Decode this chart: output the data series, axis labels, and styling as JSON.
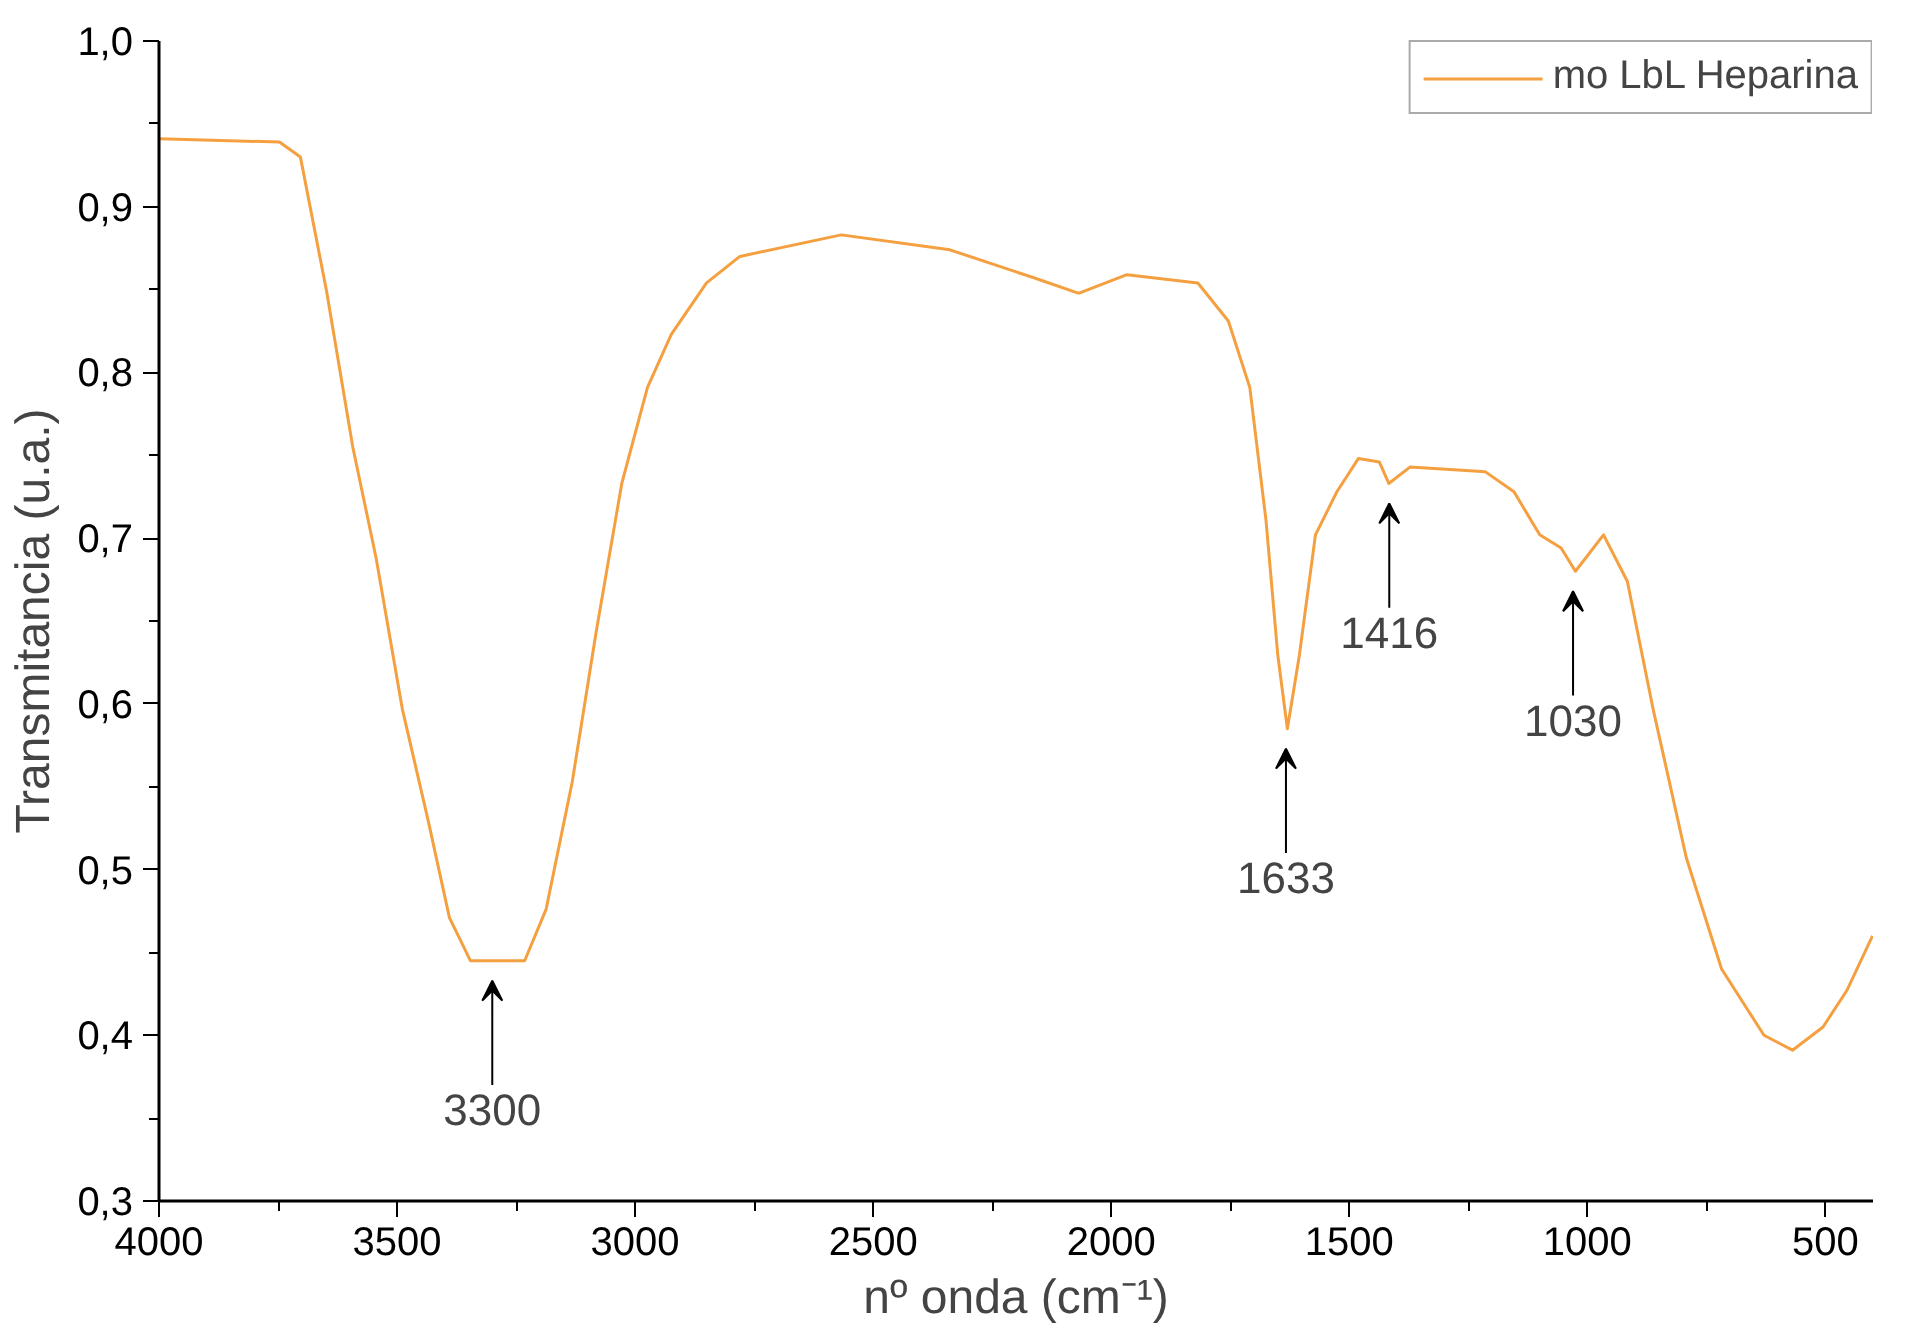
{
  "chart_data": {
    "type": "line",
    "xlabel": "nº onda (cm⁻¹)",
    "ylabel": "Transmitancia (u.a.)",
    "x": [
      4000,
      3871,
      3747,
      3703,
      3648,
      3593,
      3544,
      3489,
      3435,
      3390,
      3346,
      3232,
      3187,
      3132,
      3082,
      3028,
      2974,
      2924,
      2850,
      2780,
      2567,
      2339,
      2161,
      2071,
      2066,
      1967,
      1818,
      1754,
      1709,
      1675,
      1650,
      1630,
      1605,
      1571,
      1526,
      1481,
      1437,
      1417,
      1372,
      1214,
      1154,
      1100,
      1055,
      1025,
      966,
      916,
      862,
      792,
      718,
      629,
      569,
      505,
      455,
      401
    ],
    "series": [
      {
        "name": "mo LbL Heparina",
        "color": "#f5a040",
        "values": [
          0.941,
          0.94,
          0.939,
          0.93,
          0.849,
          0.755,
          0.688,
          0.597,
          0.53,
          0.471,
          0.445,
          0.445,
          0.476,
          0.553,
          0.643,
          0.733,
          0.791,
          0.823,
          0.854,
          0.87,
          0.883,
          0.874,
          0.857,
          0.848,
          0.848,
          0.859,
          0.854,
          0.831,
          0.791,
          0.711,
          0.629,
          0.585,
          0.629,
          0.702,
          0.728,
          0.748,
          0.746,
          0.733,
          0.743,
          0.74,
          0.728,
          0.702,
          0.694,
          0.68,
          0.702,
          0.674,
          0.597,
          0.507,
          0.44,
          0.4,
          0.391,
          0.405,
          0.427,
          0.46
        ]
      }
    ],
    "xlim": [
      4000,
      400
    ],
    "xticks": [
      4000,
      3500,
      3000,
      2500,
      2000,
      1500,
      1000,
      500
    ],
    "ylim": [
      0.3,
      1.0
    ],
    "yticks": [
      {
        "value": 0.3,
        "label": "0,3"
      },
      {
        "value": 0.4,
        "label": "0,4"
      },
      {
        "value": 0.5,
        "label": "0,5"
      },
      {
        "value": 0.6,
        "label": "0,6"
      },
      {
        "value": 0.7,
        "label": "0,7"
      },
      {
        "value": 0.8,
        "label": "0,8"
      },
      {
        "value": 0.9,
        "label": "0,9"
      },
      {
        "value": 1.0,
        "label": "1,0"
      }
    ],
    "annotations": [
      {
        "text": "3300",
        "x": 3300,
        "y": 0.445
      },
      {
        "text": "1633",
        "x": 1633,
        "y": 0.585
      },
      {
        "text": "1416",
        "x": 1416,
        "y": 0.733
      },
      {
        "text": "1030",
        "x": 1030,
        "y": 0.68
      }
    ],
    "grid": false,
    "legend": "top right",
    "marker": "none",
    "line_style": "solid"
  }
}
